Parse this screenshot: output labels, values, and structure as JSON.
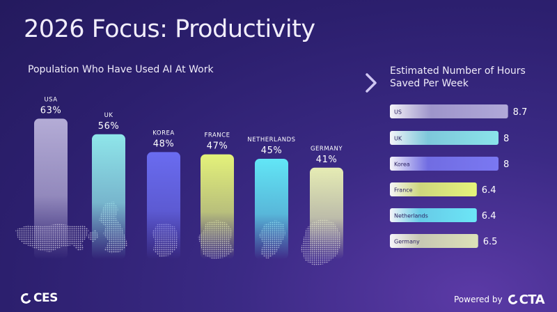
{
  "title": "2026 Focus: Productivity",
  "chart_data": [
    {
      "type": "bar",
      "title": "Population Who Have Used AI At Work",
      "categories": [
        "USA",
        "UK",
        "KOREA",
        "FRANCE",
        "NETHERLANDS",
        "GERMANY"
      ],
      "values": [
        63,
        56,
        48,
        47,
        45,
        41
      ],
      "value_labels": [
        "63%",
        "56%",
        "48%",
        "47%",
        "45%",
        "41%"
      ],
      "colors": [
        "#b4acd6",
        "#8fe6ea",
        "#6a6cf0",
        "#e4f27a",
        "#62e6f6",
        "#e6ecb4"
      ],
      "grid": false,
      "legend": "none"
    },
    {
      "type": "bar",
      "orientation": "horizontal",
      "title": "Estimated Number of Hours Saved Per Week",
      "categories": [
        "US",
        "UK",
        "Korea",
        "France",
        "Netherlands",
        "Germany"
      ],
      "values": [
        8.7,
        8,
        8,
        6.4,
        6.4,
        6.5
      ],
      "value_labels": [
        "8.7",
        "8",
        "8",
        "6.4",
        "6.4",
        "6.5"
      ],
      "colors": [
        "#b0a8d8",
        "#8ae4ea",
        "#7a78f2",
        "#e6f47a",
        "#6ce6f6",
        "#dde2b8"
      ],
      "grid": false,
      "legend": "none"
    }
  ],
  "logos": {
    "left": "CES",
    "powered_by": "Powered by",
    "right": "CTA"
  }
}
